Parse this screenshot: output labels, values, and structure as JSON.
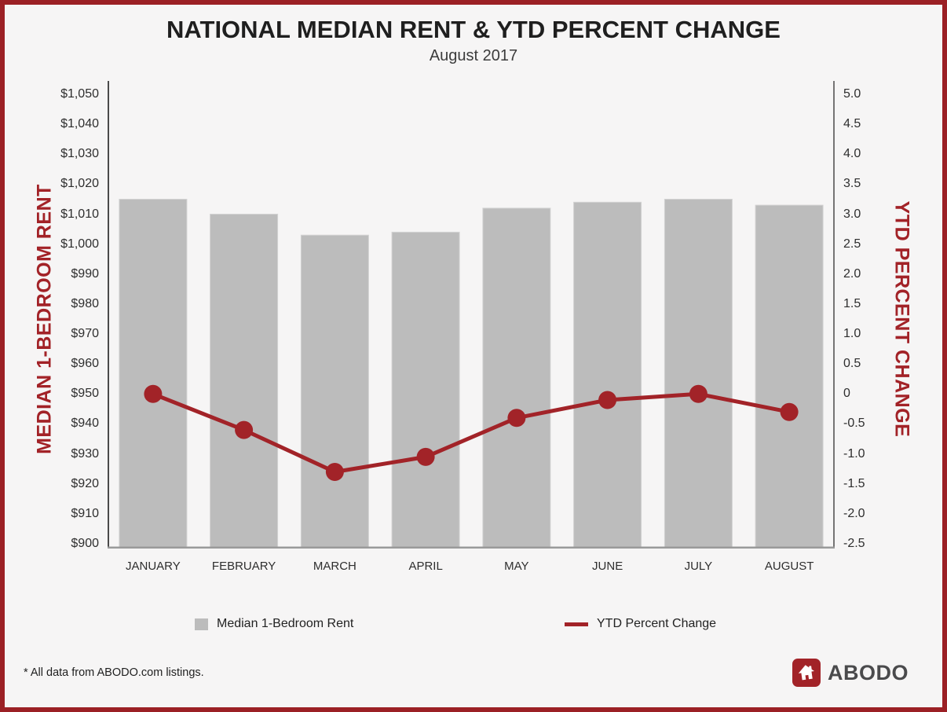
{
  "header": {
    "title": "NATIONAL MEDIAN RENT & YTD PERCENT CHANGE",
    "subtitle": "August 2017"
  },
  "chart_data": {
    "type": "combo-bar-line",
    "categories": [
      "JANUARY",
      "FEBRUARY",
      "MARCH",
      "APRIL",
      "MAY",
      "JUNE",
      "JULY",
      "AUGUST"
    ],
    "series": [
      {
        "name": "Median 1-Bedroom Rent",
        "type": "bar",
        "axis": "left",
        "color": "#bcbcbc",
        "values": [
          1015,
          1010,
          1003,
          1004,
          1012,
          1014,
          1015,
          1013
        ]
      },
      {
        "name": "YTD Percent Change",
        "type": "line",
        "axis": "right",
        "color": "#a22328",
        "values": [
          0,
          -0.6,
          -1.3,
          -1.05,
          -0.4,
          -0.1,
          0,
          -0.3
        ]
      }
    ],
    "left_axis": {
      "title": "MEDIAN 1-BEDROOM RENT",
      "min": 900,
      "max": 1050,
      "step": 10,
      "tick_labels": [
        "$1,050",
        "$1,040",
        "$1,030",
        "$1,020",
        "$1,010",
        "$1,000",
        "$990",
        "$980",
        "$970",
        "$960",
        "$950",
        "$940",
        "$930",
        "$920",
        "$910",
        "$900"
      ]
    },
    "right_axis": {
      "title": "YTD PERCENT CHANGE",
      "min": -2.5,
      "max": 5.0,
      "step": 0.5,
      "tick_labels": [
        "5.0",
        "4.5",
        "4.0",
        "3.5",
        "3.0",
        "2.5",
        "2.0",
        "1.5",
        "1.0",
        "0.5",
        "0",
        "-0.5",
        "-1.0",
        "-1.5",
        "-2.0",
        "-2.5"
      ]
    },
    "grid": false,
    "legend_position": "bottom"
  },
  "legend": {
    "items": [
      {
        "label": "Median 1-Bedroom Rent",
        "swatch": "square",
        "color": "#bcbcbc"
      },
      {
        "label": "YTD Percent Change",
        "swatch": "line",
        "color": "#a22328"
      }
    ]
  },
  "footer": {
    "note": "* All data from ABODO.com listings.",
    "logo_icon": "house-icon",
    "logo_text": "ABODO"
  },
  "colors": {
    "border_red": "#9b2025",
    "accent_red": "#a22328",
    "bar_gray": "#bcbcbc",
    "background": "#f6f5f5",
    "axis_line": "#4a4a4a",
    "baseline_gray": "#9a9a9a",
    "logo_text": "#4a4a4c"
  }
}
